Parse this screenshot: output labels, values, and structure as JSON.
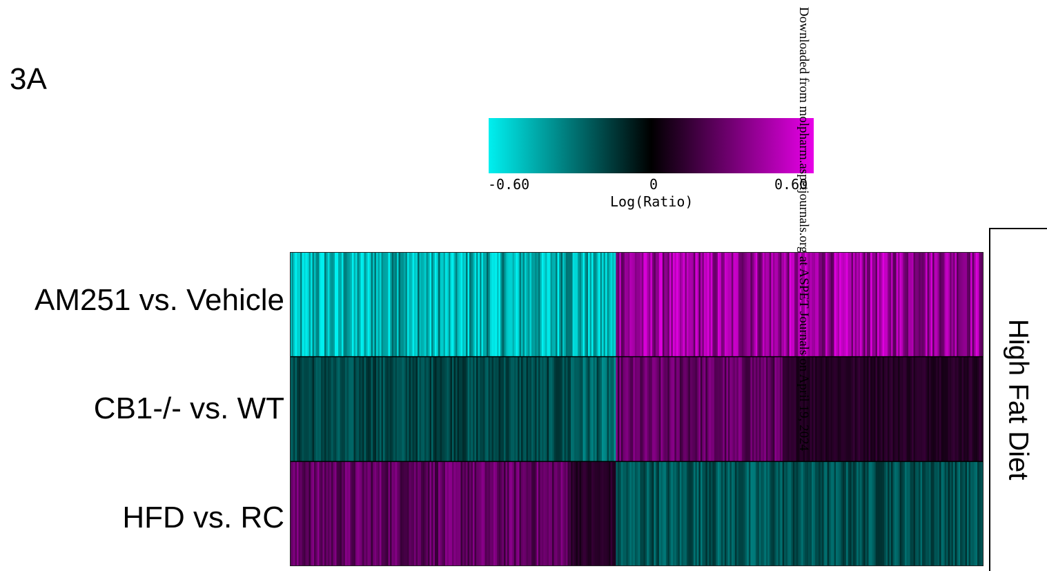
{
  "figure_label": "3A",
  "watermark": "Downloaded from molpharm.aspetjournals.org at ASPET Journals on April 19, 2024",
  "colors": {
    "low": "#00f0f0",
    "mid": "#000000",
    "high": "#e800e8"
  },
  "chart_data": {
    "type": "heatmap",
    "rows": [
      "AM251 vs. Vehicle",
      "CB1-/- vs. WT",
      "HFD vs. RC"
    ],
    "group_label": "High Fat Diet",
    "colorbar": {
      "label": "Log(Ratio)",
      "min": -0.6,
      "max": 0.6,
      "ticks": [
        "-0.60",
        "0",
        "0.60"
      ]
    },
    "segments": [
      {
        "fraction": 0.405,
        "values": [
          -0.45,
          -0.18,
          0.25
        ]
      },
      {
        "fraction": 0.065,
        "values": [
          -0.45,
          -0.25,
          0.1
        ]
      },
      {
        "fraction": 0.24,
        "values": [
          0.4,
          0.25,
          -0.22
        ]
      },
      {
        "fraction": 0.29,
        "values": [
          0.4,
          0.1,
          -0.2
        ]
      }
    ],
    "row_breaks": [
      [
        {
          "at": 0.405,
          "fill": "#e800e8"
        }
      ],
      [
        {
          "at": 0.065,
          "fill": "#000"
        },
        {
          "at": 0.32,
          "fill": "#000"
        },
        {
          "at": 0.41,
          "fill": "#e800e8"
        },
        {
          "at": 0.95,
          "fill": "#00f0f0"
        }
      ],
      [
        {
          "at": 0.3,
          "fill": "#000"
        },
        {
          "at": 0.77,
          "fill": "#000"
        }
      ]
    ]
  }
}
